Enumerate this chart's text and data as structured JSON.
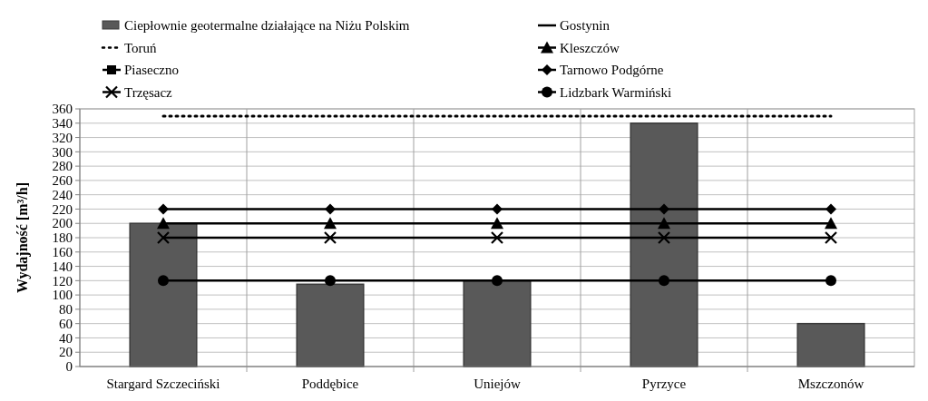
{
  "chart_data": {
    "type": "bar",
    "ylabel": "Wydajność [m³/h]",
    "categories": [
      "Stargard Szczeciński",
      "Poddębice",
      "Uniejów",
      "Pyrzyce",
      "Mszczonów"
    ],
    "series": [
      {
        "name": "Ciepłownie geotermalne działające na Niżu Polskim",
        "color": "#595959",
        "values": [
          200,
          115,
          120,
          340,
          60
        ]
      },
      {
        "name": "Gostynin",
        "type": "line",
        "color": "#000000",
        "line_style": "solid",
        "marker": "none",
        "values": [
          null,
          null,
          null,
          null,
          null
        ]
      },
      {
        "name": "Toruń",
        "type": "line",
        "color": "#000000",
        "line_style": "dotted",
        "marker": "none",
        "values": [
          350,
          350,
          350,
          350,
          350
        ]
      },
      {
        "name": "Kleszczów",
        "type": "line",
        "color": "#000000",
        "line_style": "solid",
        "marker": "triangle",
        "values": [
          200,
          200,
          200,
          200,
          200
        ]
      },
      {
        "name": "Piaseczno",
        "type": "line",
        "color": "#000000",
        "line_style": "solid",
        "marker": "square",
        "values": [
          null,
          null,
          null,
          null,
          null
        ]
      },
      {
        "name": "Tarnowo Podgórne",
        "type": "line",
        "color": "#000000",
        "line_style": "solid",
        "marker": "diamond",
        "values": [
          220,
          220,
          220,
          220,
          220
        ]
      },
      {
        "name": "Trzęsacz",
        "type": "line",
        "color": "#000000",
        "line_style": "solid",
        "marker": "cross",
        "values": [
          180,
          180,
          180,
          180,
          180
        ]
      },
      {
        "name": "Lidzbark Warmiński",
        "type": "line",
        "color": "#000000",
        "line_style": "solid",
        "marker": "circle",
        "values": [
          120,
          120,
          120,
          120,
          120
        ]
      }
    ],
    "ylim": [
      0,
      360
    ],
    "yticks": [
      0,
      20,
      40,
      60,
      80,
      100,
      120,
      140,
      160,
      180,
      200,
      220,
      240,
      260,
      280,
      300,
      320,
      340,
      360
    ],
    "grid": true,
    "legend": "top"
  }
}
